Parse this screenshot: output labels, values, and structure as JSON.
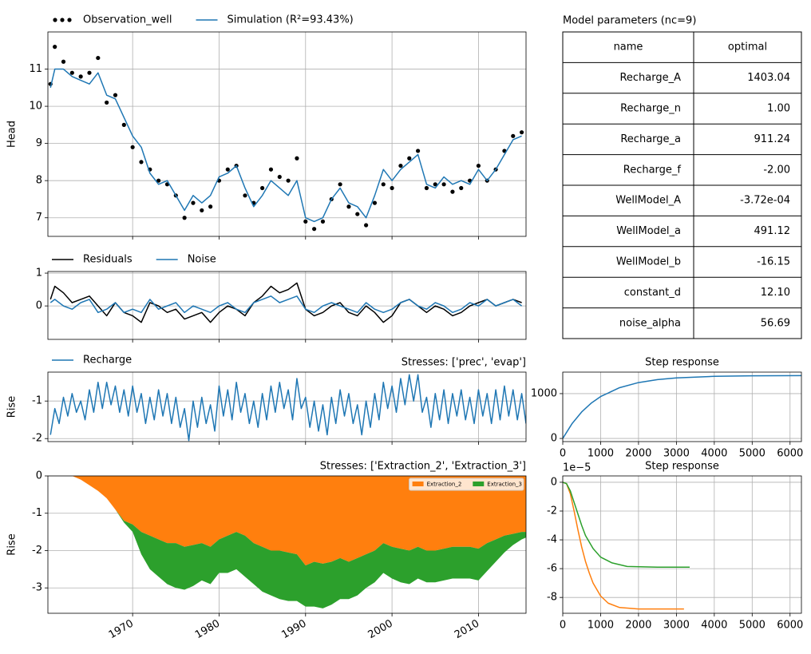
{
  "chart_data": [
    {
      "type": "line",
      "ylabel": "Head",
      "x": [
        1960.5,
        1961,
        1962,
        1963,
        1964,
        1965,
        1966,
        1967,
        1968,
        1969,
        1970,
        1971,
        1972,
        1973,
        1974,
        1975,
        1976,
        1977,
        1978,
        1979,
        1980,
        1981,
        1982,
        1983,
        1984,
        1985,
        1986,
        1987,
        1988,
        1989,
        1990,
        1991,
        1992,
        1993,
        1994,
        1995,
        1996,
        1997,
        1998,
        1999,
        2000,
        2001,
        2002,
        2003,
        2004,
        2005,
        2006,
        2007,
        2008,
        2009,
        2010,
        2011,
        2012,
        2013,
        2014,
        2015
      ],
      "xlim": [
        1960.2,
        2015.5
      ],
      "xticks": [
        1970,
        1980,
        1990,
        2000,
        2010
      ],
      "xtick_labels": false,
      "ylim": [
        6.5,
        12.0
      ],
      "yticks": [
        7,
        8,
        9,
        10,
        11
      ],
      "grid": true,
      "legend": "above",
      "series": [
        {
          "name": "Observation_well",
          "type": "scatter",
          "color": "#000000",
          "values": [
            10.6,
            11.6,
            11.2,
            10.9,
            10.8,
            10.9,
            11.3,
            10.1,
            10.3,
            9.5,
            8.9,
            8.5,
            8.3,
            8.0,
            7.9,
            7.6,
            7.0,
            7.4,
            7.2,
            7.3,
            8.0,
            8.3,
            8.4,
            7.6,
            7.4,
            7.8,
            8.3,
            8.1,
            8.0,
            8.6,
            6.9,
            6.7,
            6.9,
            7.5,
            7.9,
            7.3,
            7.1,
            6.8,
            7.4,
            7.9,
            7.8,
            8.4,
            8.6,
            8.8,
            7.8,
            7.9,
            7.9,
            7.7,
            7.8,
            8.0,
            8.4,
            8.0,
            8.3,
            8.8,
            9.2,
            9.3
          ]
        },
        {
          "name": "Simulation (R²=93.43%)",
          "color": "#1f77b4",
          "values": [
            10.5,
            11.0,
            11.0,
            10.8,
            10.7,
            10.6,
            10.9,
            10.3,
            10.2,
            9.7,
            9.2,
            8.9,
            8.2,
            7.9,
            8.0,
            7.6,
            7.2,
            7.6,
            7.4,
            7.6,
            8.1,
            8.2,
            8.4,
            7.8,
            7.3,
            7.6,
            8.0,
            7.8,
            7.6,
            8.0,
            7.0,
            6.9,
            7.0,
            7.5,
            7.8,
            7.4,
            7.3,
            7.0,
            7.6,
            8.3,
            8.0,
            8.3,
            8.5,
            8.7,
            7.9,
            7.8,
            8.1,
            7.9,
            8.0,
            7.9,
            8.3,
            8.0,
            8.3,
            8.7,
            9.1,
            9.2
          ]
        }
      ]
    },
    {
      "type": "line",
      "x": [
        1960.5,
        1961,
        1962,
        1963,
        1964,
        1965,
        1966,
        1967,
        1968,
        1969,
        1970,
        1971,
        1972,
        1973,
        1974,
        1975,
        1976,
        1977,
        1978,
        1979,
        1980,
        1981,
        1982,
        1983,
        1984,
        1985,
        1986,
        1987,
        1988,
        1989,
        1990,
        1991,
        1992,
        1993,
        1994,
        1995,
        1996,
        1997,
        1998,
        1999,
        2000,
        2001,
        2002,
        2003,
        2004,
        2005,
        2006,
        2007,
        2008,
        2009,
        2010,
        2011,
        2012,
        2013,
        2014,
        2015
      ],
      "xlim": [
        1960.2,
        2015.5
      ],
      "xticks": [
        1970,
        1980,
        1990,
        2000,
        2010
      ],
      "xtick_labels": false,
      "ylim": [
        -1.02,
        1.05
      ],
      "yticks": [
        0,
        1
      ],
      "grid": true,
      "legend": "above",
      "series": [
        {
          "name": "Residuals",
          "color": "#000000",
          "values": [
            0.2,
            0.6,
            0.4,
            0.1,
            0.2,
            0.3,
            0.0,
            -0.3,
            0.1,
            -0.2,
            -0.3,
            -0.5,
            0.1,
            0.0,
            -0.2,
            -0.1,
            -0.4,
            -0.3,
            -0.2,
            -0.5,
            -0.2,
            0.0,
            -0.1,
            -0.3,
            0.1,
            0.3,
            0.6,
            0.4,
            0.5,
            0.7,
            -0.1,
            -0.3,
            -0.2,
            0.0,
            0.1,
            -0.2,
            -0.3,
            0.0,
            -0.2,
            -0.5,
            -0.3,
            0.1,
            0.2,
            0.0,
            -0.2,
            0.0,
            -0.1,
            -0.3,
            -0.2,
            0.0,
            0.1,
            0.2,
            0.0,
            0.1,
            0.2,
            0.1
          ]
        },
        {
          "name": "Noise",
          "color": "#1f77b4",
          "values": [
            0.1,
            0.2,
            0.0,
            -0.1,
            0.1,
            0.2,
            -0.2,
            -0.1,
            0.1,
            -0.2,
            -0.1,
            -0.2,
            0.2,
            -0.1,
            0.0,
            0.1,
            -0.2,
            0.0,
            -0.1,
            -0.2,
            0.0,
            0.1,
            -0.1,
            -0.2,
            0.1,
            0.2,
            0.3,
            0.1,
            0.2,
            0.3,
            -0.1,
            -0.2,
            0.0,
            0.1,
            0.0,
            -0.1,
            -0.2,
            0.1,
            -0.1,
            -0.2,
            -0.1,
            0.1,
            0.2,
            0.0,
            -0.1,
            0.1,
            0.0,
            -0.2,
            -0.1,
            0.1,
            0.0,
            0.2,
            0.0,
            0.1,
            0.2,
            0.0
          ]
        }
      ]
    },
    {
      "type": "line",
      "ylabel": "Rise",
      "title": "Stresses: ['prec', 'evap']",
      "title_loc": "right",
      "x": [
        1960.5,
        1961,
        1961.5,
        1962,
        1962.5,
        1963,
        1963.5,
        1964,
        1964.5,
        1965,
        1965.5,
        1966,
        1966.5,
        1967,
        1967.5,
        1968,
        1968.5,
        1969,
        1969.5,
        1970,
        1970.5,
        1971,
        1971.5,
        1972,
        1972.5,
        1973,
        1973.5,
        1974,
        1974.5,
        1975,
        1975.5,
        1976,
        1976.5,
        1977,
        1977.5,
        1978,
        1978.5,
        1979,
        1979.5,
        1980,
        1980.5,
        1981,
        1981.5,
        1982,
        1982.5,
        1983,
        1983.5,
        1984,
        1984.5,
        1985,
        1985.5,
        1986,
        1986.5,
        1987,
        1987.5,
        1988,
        1988.5,
        1989,
        1989.5,
        1990,
        1990.5,
        1991,
        1991.5,
        1992,
        1992.5,
        1993,
        1993.5,
        1994,
        1994.5,
        1995,
        1995.5,
        1996,
        1996.5,
        1997,
        1997.5,
        1998,
        1998.5,
        1999,
        1999.5,
        2000,
        2000.5,
        2001,
        2001.5,
        2002,
        2002.5,
        2003,
        2003.5,
        2004,
        2004.5,
        2005,
        2005.5,
        2006,
        2006.5,
        2007,
        2007.5,
        2008,
        2008.5,
        2009,
        2009.5,
        2010,
        2010.5,
        2011,
        2011.5,
        2012,
        2012.5,
        2013,
        2013.5,
        2014,
        2014.5,
        2015,
        2015.5
      ],
      "xlim": [
        1960.2,
        2015.5
      ],
      "xticks": [
        1970,
        1980,
        1990,
        2000,
        2010
      ],
      "xtick_labels": false,
      "ylim": [
        -2.08,
        -0.23
      ],
      "yticks": [
        -2,
        -1
      ],
      "grid": true,
      "legend": "above",
      "series": [
        {
          "name": "Recharge",
          "color": "#1f77b4",
          "values": [
            -1.9,
            -1.2,
            -1.6,
            -0.9,
            -1.4,
            -0.8,
            -1.3,
            -1.0,
            -1.5,
            -0.7,
            -1.3,
            -0.5,
            -1.2,
            -0.5,
            -1.1,
            -0.6,
            -1.3,
            -0.7,
            -1.4,
            -0.6,
            -1.3,
            -0.8,
            -1.6,
            -0.9,
            -1.5,
            -0.7,
            -1.4,
            -0.8,
            -1.6,
            -0.9,
            -1.7,
            -1.2,
            -2.05,
            -1.0,
            -1.7,
            -0.9,
            -1.6,
            -1.1,
            -1.8,
            -0.6,
            -1.4,
            -0.7,
            -1.5,
            -0.5,
            -1.3,
            -0.8,
            -1.6,
            -1.0,
            -1.7,
            -0.8,
            -1.5,
            -0.6,
            -1.3,
            -0.5,
            -1.2,
            -0.7,
            -1.5,
            -0.4,
            -1.2,
            -0.9,
            -1.7,
            -1.0,
            -1.8,
            -1.1,
            -1.9,
            -0.9,
            -1.6,
            -0.7,
            -1.4,
            -0.8,
            -1.6,
            -1.1,
            -1.9,
            -1.0,
            -1.7,
            -0.8,
            -1.5,
            -0.5,
            -1.2,
            -0.6,
            -1.3,
            -0.4,
            -1.1,
            -0.3,
            -1.0,
            -0.3,
            -1.3,
            -0.9,
            -1.7,
            -0.8,
            -1.5,
            -0.7,
            -1.6,
            -0.8,
            -1.4,
            -0.7,
            -1.5,
            -0.9,
            -1.6,
            -0.7,
            -1.4,
            -0.8,
            -1.6,
            -0.7,
            -1.5,
            -0.6,
            -1.4,
            -0.7,
            -1.5,
            -0.8,
            -1.6
          ]
        }
      ]
    },
    {
      "type": "area",
      "stacked": true,
      "ylabel": "Rise",
      "title": "Stresses: ['Extraction_2', 'Extraction_3']",
      "title_loc": "right",
      "x": [
        1963,
        1964,
        1965,
        1966,
        1967,
        1968,
        1969,
        1970,
        1971,
        1972,
        1973,
        1974,
        1975,
        1976,
        1977,
        1978,
        1979,
        1980,
        1981,
        1982,
        1983,
        1984,
        1985,
        1986,
        1987,
        1988,
        1989,
        1990,
        1991,
        1992,
        1993,
        1994,
        1995,
        1996,
        1997,
        1998,
        1999,
        2000,
        2001,
        2002,
        2003,
        2004,
        2005,
        2006,
        2007,
        2008,
        2009,
        2010,
        2011,
        2012,
        2013,
        2014,
        2015,
        2015.5
      ],
      "xlim": [
        1960.2,
        2015.5
      ],
      "xticks": [
        1970,
        1980,
        1990,
        2000,
        2010
      ],
      "xtick_rotation": -30,
      "ylim": [
        -3.68,
        0
      ],
      "yticks": [
        0,
        -1,
        -2,
        -3
      ],
      "grid": true,
      "legend": "upper right",
      "series": [
        {
          "name": "Extraction_2",
          "color": "#ff7f0e",
          "values": [
            0,
            -0.1,
            -0.25,
            -0.4,
            -0.6,
            -0.9,
            -1.2,
            -1.3,
            -1.5,
            -1.6,
            -1.7,
            -1.8,
            -1.8,
            -1.9,
            -1.85,
            -1.8,
            -1.9,
            -1.7,
            -1.6,
            -1.5,
            -1.6,
            -1.8,
            -1.9,
            -2.0,
            -2.0,
            -2.05,
            -2.1,
            -2.4,
            -2.3,
            -2.35,
            -2.3,
            -2.2,
            -2.3,
            -2.2,
            -2.1,
            -2.0,
            -1.8,
            -1.9,
            -1.95,
            -2.0,
            -1.9,
            -2.0,
            -2.0,
            -1.95,
            -1.9,
            -1.9,
            -1.9,
            -1.95,
            -1.8,
            -1.7,
            -1.6,
            -1.55,
            -1.5,
            -1.5
          ]
        },
        {
          "name": "Extraction_3",
          "color": "#2ca02c",
          "values": [
            0,
            0,
            0,
            0,
            0,
            0,
            -0.05,
            -0.2,
            -0.6,
            -0.9,
            -1.0,
            -1.1,
            -1.2,
            -1.15,
            -1.1,
            -1.0,
            -1.0,
            -0.9,
            -1.0,
            -1.0,
            -1.1,
            -1.1,
            -1.2,
            -1.2,
            -1.3,
            -1.3,
            -1.25,
            -1.1,
            -1.2,
            -1.2,
            -1.15,
            -1.1,
            -1.0,
            -1.0,
            -0.9,
            -0.85,
            -0.8,
            -0.85,
            -0.9,
            -0.9,
            -0.85,
            -0.85,
            -0.85,
            -0.85,
            -0.85,
            -0.85,
            -0.85,
            -0.85,
            -0.75,
            -0.6,
            -0.45,
            -0.3,
            -0.2,
            -0.15
          ]
        }
      ]
    },
    {
      "type": "line",
      "title": "Step response",
      "title_loc": "center",
      "xlim": [
        0,
        6300
      ],
      "xticks": [
        0,
        1000,
        2000,
        3000,
        4000,
        5000,
        6000
      ],
      "ylim": [
        -70,
        1480
      ],
      "yticks": [
        0,
        1000
      ],
      "grid": true,
      "series": [
        {
          "color": "#1f77b4",
          "x": [
            0,
            250,
            500,
            750,
            1000,
            1500,
            2000,
            2500,
            3000,
            4000,
            5000,
            6300
          ],
          "values": [
            0,
            336,
            592,
            787,
            935,
            1133,
            1247,
            1313,
            1351,
            1386,
            1397,
            1401
          ]
        }
      ]
    },
    {
      "type": "line",
      "title": "Step response",
      "title_loc": "center",
      "y_offset_label": "1e−5",
      "xlim": [
        0,
        6300
      ],
      "xticks": [
        0,
        1000,
        2000,
        3000,
        4000,
        5000,
        6000
      ],
      "ylim": [
        -9.1,
        0.44
      ],
      "yticks": [
        0,
        -2,
        -4,
        -6,
        -8
      ],
      "grid": true,
      "series": [
        {
          "color": "#ff7f0e",
          "x": [
            0,
            100,
            200,
            300,
            400,
            500,
            600,
            700,
            800,
            1000,
            1200,
            1500,
            2000,
            3200
          ],
          "values": [
            0,
            -0.1,
            -0.8,
            -2.0,
            -3.3,
            -4.5,
            -5.5,
            -6.3,
            -7.0,
            -7.9,
            -8.4,
            -8.7,
            -8.8,
            -8.8
          ]
        },
        {
          "color": "#2ca02c",
          "x": [
            0,
            100,
            200,
            300,
            400,
            500,
            600,
            800,
            1000,
            1300,
            1700,
            2500,
            3350
          ],
          "values": [
            0,
            -0.1,
            -0.6,
            -1.4,
            -2.2,
            -3.0,
            -3.7,
            -4.6,
            -5.2,
            -5.6,
            -5.85,
            -5.9,
            -5.9
          ]
        }
      ]
    }
  ],
  "table": {
    "title": "Model parameters (nc=9)",
    "columns": [
      "name",
      "optimal"
    ],
    "rows": [
      [
        "Recharge_A",
        "1403.04"
      ],
      [
        "Recharge_n",
        "1.00"
      ],
      [
        "Recharge_a",
        "911.24"
      ],
      [
        "Recharge_f",
        "-2.00"
      ],
      [
        "WellModel_A",
        "-3.72e-04"
      ],
      [
        "WellModel_a",
        "491.12"
      ],
      [
        "WellModel_b",
        "-16.15"
      ],
      [
        "constant_d",
        "12.10"
      ],
      [
        "noise_alpha",
        "56.69"
      ]
    ]
  }
}
